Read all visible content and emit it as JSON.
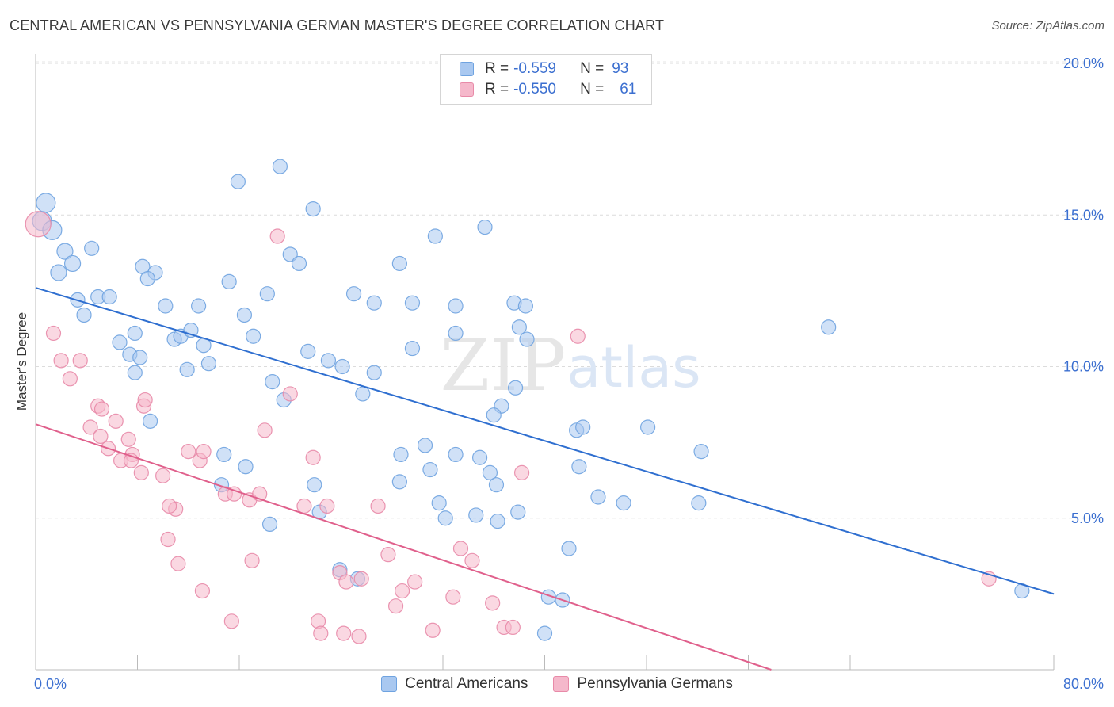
{
  "title": "CENTRAL AMERICAN VS PENNSYLVANIA GERMAN MASTER'S DEGREE CORRELATION CHART",
  "source": "Source: ZipAtlas.com",
  "watermark": {
    "zip": "ZIP",
    "atlas": "atlas"
  },
  "legend_top": {
    "rows": [
      {
        "r_label": "R =",
        "r_value": "-0.559",
        "n_label": "N =",
        "n_value": "93",
        "color": "#a9c8f0"
      },
      {
        "r_label": "R =",
        "r_value": "-0.550",
        "n_label": "N =",
        "n_value": "61",
        "color": "#f5b8cb"
      }
    ]
  },
  "legend_bottom": [
    {
      "label": "Central Americans",
      "color": "#a9c8f0"
    },
    {
      "label": "Pennsylvania Germans",
      "color": "#f5b8cb"
    }
  ],
  "chart_data": {
    "type": "scatter",
    "title": "CENTRAL AMERICAN VS PENNSYLVANIA GERMAN MASTER'S DEGREE CORRELATION CHART",
    "xlabel": "",
    "ylabel": "Master's Degree",
    "xlim": [
      0,
      80
    ],
    "ylim": [
      0,
      20
    ],
    "x_tick_labels": [
      "0.0%",
      "80.0%"
    ],
    "y_ticks": [
      5,
      10,
      15,
      20
    ],
    "y_tick_labels": [
      "5.0%",
      "10.0%",
      "15.0%",
      "20.0%"
    ],
    "grid": true,
    "legend_position": "top-center",
    "series": [
      {
        "name": "Central Americans",
        "color": "#6fa3e0",
        "fill": "#a9c8f0",
        "trend": {
          "x": [
            0,
            80
          ],
          "y": [
            12.6,
            2.5
          ]
        },
        "points": [
          [
            0.8,
            15.4
          ],
          [
            0.5,
            14.8
          ],
          [
            1.3,
            14.5
          ],
          [
            2.3,
            13.8
          ],
          [
            1.8,
            13.1
          ],
          [
            2.9,
            13.4
          ],
          [
            4.4,
            13.9
          ],
          [
            3.3,
            12.2
          ],
          [
            4.9,
            12.3
          ],
          [
            5.8,
            12.3
          ],
          [
            3.8,
            11.7
          ],
          [
            8.4,
            13.3
          ],
          [
            9.4,
            13.1
          ],
          [
            8.8,
            12.9
          ],
          [
            10.2,
            12.0
          ],
          [
            12.8,
            12.0
          ],
          [
            15.2,
            12.8
          ],
          [
            15.9,
            16.1
          ],
          [
            18.2,
            12.4
          ],
          [
            16.4,
            11.7
          ],
          [
            19.2,
            16.6
          ],
          [
            20.0,
            13.7
          ],
          [
            20.7,
            13.4
          ],
          [
            21.8,
            15.2
          ],
          [
            25.0,
            12.4
          ],
          [
            26.6,
            12.1
          ],
          [
            28.6,
            13.4
          ],
          [
            29.6,
            12.1
          ],
          [
            31.4,
            14.3
          ],
          [
            33.0,
            12.0
          ],
          [
            35.3,
            14.6
          ],
          [
            37.6,
            12.1
          ],
          [
            38.5,
            12.0
          ],
          [
            6.6,
            10.8
          ],
          [
            7.4,
            10.4
          ],
          [
            7.8,
            9.8
          ],
          [
            8.2,
            10.3
          ],
          [
            7.8,
            11.1
          ],
          [
            9.0,
            8.2
          ],
          [
            10.9,
            10.9
          ],
          [
            11.4,
            11.0
          ],
          [
            12.2,
            11.2
          ],
          [
            11.9,
            9.9
          ],
          [
            13.2,
            10.7
          ],
          [
            13.6,
            10.1
          ],
          [
            17.1,
            11.0
          ],
          [
            18.6,
            9.5
          ],
          [
            19.5,
            8.9
          ],
          [
            21.4,
            10.5
          ],
          [
            23.0,
            10.2
          ],
          [
            24.1,
            10.0
          ],
          [
            25.7,
            9.1
          ],
          [
            26.6,
            9.8
          ],
          [
            29.6,
            10.6
          ],
          [
            33.0,
            11.1
          ],
          [
            38.0,
            11.3
          ],
          [
            38.6,
            10.9
          ],
          [
            37.7,
            9.3
          ],
          [
            36.6,
            8.7
          ],
          [
            36.0,
            8.4
          ],
          [
            42.5,
            7.9
          ],
          [
            43.0,
            8.0
          ],
          [
            48.1,
            8.0
          ],
          [
            30.6,
            7.4
          ],
          [
            28.7,
            7.1
          ],
          [
            28.6,
            6.2
          ],
          [
            31.0,
            6.6
          ],
          [
            33.0,
            7.1
          ],
          [
            34.9,
            7.0
          ],
          [
            35.7,
            6.5
          ],
          [
            36.2,
            6.1
          ],
          [
            42.7,
            6.7
          ],
          [
            44.2,
            5.7
          ],
          [
            46.2,
            5.5
          ],
          [
            52.1,
            5.5
          ],
          [
            52.3,
            7.2
          ],
          [
            62.3,
            11.3
          ],
          [
            14.8,
            7.1
          ],
          [
            14.6,
            6.1
          ],
          [
            16.5,
            6.7
          ],
          [
            18.4,
            4.8
          ],
          [
            21.9,
            6.1
          ],
          [
            22.3,
            5.2
          ],
          [
            23.9,
            3.3
          ],
          [
            25.3,
            3.0
          ],
          [
            31.7,
            5.5
          ],
          [
            32.2,
            5.0
          ],
          [
            34.6,
            5.1
          ],
          [
            36.3,
            4.9
          ],
          [
            37.9,
            5.2
          ],
          [
            41.9,
            4.0
          ],
          [
            40.3,
            2.4
          ],
          [
            41.4,
            2.3
          ],
          [
            40.0,
            1.2
          ],
          [
            77.5,
            2.6
          ]
        ]
      },
      {
        "name": "Pennsylvania Germans",
        "color": "#e88aa8",
        "fill": "#f5b8cb",
        "trend": {
          "x": [
            0,
            57.8
          ],
          "y": [
            8.1,
            0
          ]
        },
        "points": [
          [
            0.2,
            14.7
          ],
          [
            1.4,
            11.1
          ],
          [
            2.0,
            10.2
          ],
          [
            2.7,
            9.6
          ],
          [
            3.5,
            10.2
          ],
          [
            4.9,
            8.7
          ],
          [
            5.2,
            8.6
          ],
          [
            4.3,
            8.0
          ],
          [
            5.1,
            7.7
          ],
          [
            5.7,
            7.3
          ],
          [
            6.3,
            8.2
          ],
          [
            7.3,
            7.6
          ],
          [
            8.5,
            8.7
          ],
          [
            8.6,
            8.9
          ],
          [
            7.6,
            7.1
          ],
          [
            6.7,
            6.9
          ],
          [
            7.5,
            6.9
          ],
          [
            8.3,
            6.5
          ],
          [
            10.0,
            6.4
          ],
          [
            11.0,
            5.3
          ],
          [
            10.5,
            5.4
          ],
          [
            12.0,
            7.2
          ],
          [
            12.9,
            6.9
          ],
          [
            13.2,
            7.2
          ],
          [
            14.9,
            5.8
          ],
          [
            15.6,
            5.8
          ],
          [
            16.8,
            5.6
          ],
          [
            17.6,
            5.8
          ],
          [
            17.0,
            3.6
          ],
          [
            18.0,
            7.9
          ],
          [
            19.0,
            14.3
          ],
          [
            20.0,
            9.1
          ],
          [
            21.1,
            5.4
          ],
          [
            21.8,
            7.0
          ],
          [
            22.9,
            5.4
          ],
          [
            23.9,
            3.2
          ],
          [
            24.4,
            2.9
          ],
          [
            25.6,
            3.0
          ],
          [
            26.9,
            5.4
          ],
          [
            27.7,
            3.8
          ],
          [
            28.8,
            2.6
          ],
          [
            28.3,
            2.1
          ],
          [
            29.8,
            2.9
          ],
          [
            22.2,
            1.6
          ],
          [
            22.4,
            1.2
          ],
          [
            24.2,
            1.2
          ],
          [
            25.4,
            1.1
          ],
          [
            31.2,
            1.3
          ],
          [
            32.8,
            2.4
          ],
          [
            33.4,
            4.0
          ],
          [
            34.3,
            3.6
          ],
          [
            35.9,
            2.2
          ],
          [
            36.8,
            1.4
          ],
          [
            37.5,
            1.4
          ],
          [
            38.2,
            6.5
          ],
          [
            10.4,
            4.3
          ],
          [
            11.2,
            3.5
          ],
          [
            13.1,
            2.6
          ],
          [
            15.4,
            1.6
          ],
          [
            42.6,
            11.0
          ],
          [
            74.9,
            3.0
          ]
        ]
      }
    ]
  }
}
